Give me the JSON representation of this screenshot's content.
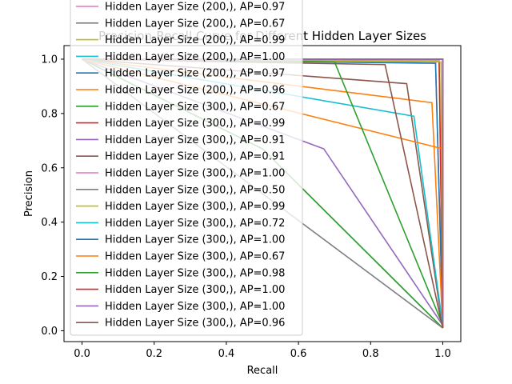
{
  "chart_data": {
    "type": "line",
    "title": "Precision-Recall Curve for Different Hidden Layer Sizes",
    "xlabel": "Recall",
    "ylabel": "Precision",
    "xlim": [
      -0.05,
      1.05
    ],
    "ylim": [
      -0.04,
      1.05
    ],
    "xticks": [
      "0.0",
      "0.2",
      "0.4",
      "0.6",
      "0.8",
      "1.0"
    ],
    "yticks": [
      "0.0",
      "0.2",
      "0.4",
      "0.6",
      "0.8",
      "1.0"
    ],
    "grid": false,
    "legend_placement": "upper-left",
    "series": [
      {
        "name": "Hidden Layer Size (200,), AP=0.97",
        "color": "#e377c2",
        "x": [
          0,
          0.98,
          1
        ],
        "y": [
          1.0,
          0.99,
          0.02
        ]
      },
      {
        "name": "Hidden Layer Size (200,), AP=0.67",
        "color": "#7f7f7f",
        "x": [
          0,
          0.5,
          1
        ],
        "y": [
          1.0,
          0.67,
          0.01
        ]
      },
      {
        "name": "Hidden Layer Size (200,), AP=0.99",
        "color": "#bcbd22",
        "x": [
          0,
          0.99,
          1
        ],
        "y": [
          1.0,
          0.995,
          0.02
        ]
      },
      {
        "name": "Hidden Layer Size (200,), AP=1.00",
        "color": "#17becf",
        "x": [
          0,
          1,
          1
        ],
        "y": [
          1.0,
          1.0,
          0.03
        ]
      },
      {
        "name": "Hidden Layer Size (200,), AP=0.97",
        "color": "#1f77b4",
        "x": [
          0,
          0.98,
          1
        ],
        "y": [
          1.0,
          0.985,
          0.02
        ]
      },
      {
        "name": "Hidden Layer Size (200,), AP=0.96",
        "color": "#ff7f0e",
        "x": [
          0,
          0.97,
          1
        ],
        "y": [
          1.0,
          0.84,
          0.01
        ]
      },
      {
        "name": "Hidden Layer Size (300,), AP=0.67",
        "color": "#2ca02c",
        "x": [
          0,
          0.5,
          1
        ],
        "y": [
          1.0,
          0.67,
          0.01
        ]
      },
      {
        "name": "Hidden Layer Size (300,), AP=0.99",
        "color": "#d62728",
        "x": [
          0,
          0.99,
          1
        ],
        "y": [
          1.0,
          0.99,
          0.01
        ]
      },
      {
        "name": "Hidden Layer Size (300,), AP=0.91",
        "color": "#9467bd",
        "x": [
          0,
          0.67,
          1
        ],
        "y": [
          1.0,
          0.67,
          0.02
        ]
      },
      {
        "name": "Hidden Layer Size (300,), AP=0.91",
        "color": "#8c564b",
        "x": [
          0,
          0.9,
          1
        ],
        "y": [
          1.0,
          0.91,
          0.01
        ]
      },
      {
        "name": "Hidden Layer Size (300,), AP=1.00",
        "color": "#e377c2",
        "x": [
          0,
          1,
          1
        ],
        "y": [
          1.0,
          1.0,
          0.02
        ]
      },
      {
        "name": "Hidden Layer Size (300,), AP=0.50",
        "color": "#7f7f7f",
        "x": [
          0,
          1
        ],
        "y": [
          1.0,
          0.01
        ]
      },
      {
        "name": "Hidden Layer Size (300,), AP=0.99",
        "color": "#bcbd22",
        "x": [
          0,
          0.995,
          1
        ],
        "y": [
          1.0,
          0.99,
          0.02
        ]
      },
      {
        "name": "Hidden Layer Size (300,), AP=0.72",
        "color": "#17becf",
        "x": [
          0,
          0.92,
          1
        ],
        "y": [
          1.0,
          0.79,
          0.02
        ]
      },
      {
        "name": "Hidden Layer Size (300,), AP=1.00",
        "color": "#1f77b4",
        "x": [
          0,
          1,
          1
        ],
        "y": [
          1.0,
          1.0,
          0.02
        ]
      },
      {
        "name": "Hidden Layer Size (300,), AP=0.67",
        "color": "#ff7f0e",
        "x": [
          0,
          1,
          1
        ],
        "y": [
          1.0,
          0.67,
          0.01
        ]
      },
      {
        "name": "Hidden Layer Size (300,), AP=0.98",
        "color": "#2ca02c",
        "x": [
          0,
          0.7,
          1
        ],
        "y": [
          1.0,
          0.99,
          0.02
        ]
      },
      {
        "name": "Hidden Layer Size (300,), AP=1.00",
        "color": "#d62728",
        "x": [
          0,
          1,
          1
        ],
        "y": [
          1.0,
          1.0,
          0.01
        ]
      },
      {
        "name": "Hidden Layer Size (300,), AP=1.00",
        "color": "#9467bd",
        "x": [
          0,
          1,
          1
        ],
        "y": [
          1.0,
          1.0,
          0.02
        ]
      },
      {
        "name": "Hidden Layer Size (300,), AP=0.96",
        "color": "#8c564b",
        "x": [
          0,
          0.84,
          1
        ],
        "y": [
          1.0,
          0.98,
          0.01
        ]
      }
    ]
  }
}
